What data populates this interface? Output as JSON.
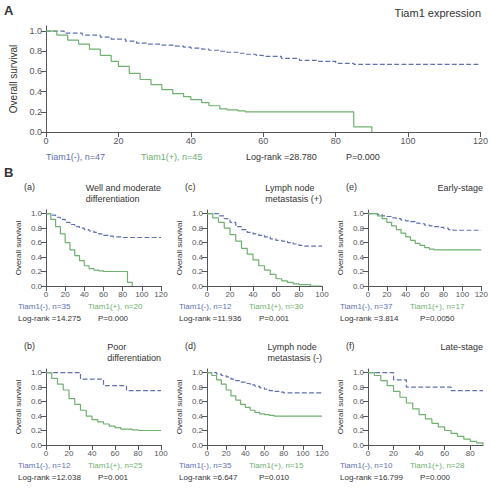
{
  "chart_data": [
    {
      "type": "step",
      "panel_label": "A",
      "title": "Tiam1 expression",
      "ylabel": "Overall survival",
      "xlim": [
        0,
        120
      ],
      "ylim": [
        0,
        1.05
      ],
      "xticks": [
        0,
        20,
        40,
        60,
        80,
        100,
        120
      ],
      "yticks": [
        {
          "value": 0.0,
          "label": "0.0"
        },
        0.2,
        0.4,
        0.6,
        0.8,
        {
          "value": 1.0,
          "label": "1.0"
        }
      ],
      "grid": false,
      "series": [
        {
          "name": "Tiam1(-), n=47",
          "color": "#6070b0",
          "line_style": "dashed",
          "x": [
            0,
            5,
            10,
            15,
            18,
            22,
            25,
            28,
            32,
            35,
            38,
            40,
            43,
            45,
            48,
            50,
            53,
            55,
            58,
            60,
            65,
            70,
            75,
            80,
            85,
            90,
            95,
            100,
            105,
            110,
            115,
            120
          ],
          "values": [
            1.0,
            0.98,
            0.96,
            0.94,
            0.92,
            0.9,
            0.88,
            0.87,
            0.86,
            0.85,
            0.84,
            0.83,
            0.82,
            0.81,
            0.8,
            0.79,
            0.78,
            0.77,
            0.76,
            0.75,
            0.73,
            0.71,
            0.7,
            0.68,
            0.67,
            0.67,
            0.67,
            0.67,
            0.67,
            0.67,
            0.67,
            0.67
          ]
        },
        {
          "name": "Tiam1(+), n=45",
          "color": "#70b070",
          "line_style": "solid",
          "x": [
            0,
            3,
            6,
            9,
            12,
            15,
            18,
            20,
            23,
            26,
            29,
            32,
            35,
            38,
            40,
            43,
            45,
            48,
            50,
            53,
            55,
            58,
            60,
            63,
            65,
            68,
            70,
            75,
            80,
            85,
            90
          ],
          "values": [
            1.0,
            0.96,
            0.91,
            0.87,
            0.82,
            0.76,
            0.7,
            0.65,
            0.58,
            0.52,
            0.47,
            0.42,
            0.38,
            0.35,
            0.32,
            0.29,
            0.26,
            0.23,
            0.22,
            0.21,
            0.2,
            0.2,
            0.2,
            0.2,
            0.2,
            0.2,
            0.2,
            0.2,
            0.2,
            0.05,
            0.0
          ]
        }
      ],
      "annotations": [
        "Log-rank =28.780",
        "P=0.000"
      ]
    },
    {
      "type": "step",
      "group_label": "B",
      "panel_label": "(a)",
      "title": "Well and moderate\ndifferentiation",
      "ylabel": "Overall survival",
      "xlim": [
        0,
        120
      ],
      "ylim": [
        0,
        1.05
      ],
      "xticks": [
        0,
        20,
        40,
        60,
        80,
        100,
        120
      ],
      "yticks": [
        {
          "value": 0.0,
          "label": "0.0"
        },
        0.2,
        0.4,
        0.6,
        0.8,
        {
          "value": 1.0,
          "label": "1.0"
        }
      ],
      "grid": false,
      "series": [
        {
          "name": "Tiam1(-), n=35",
          "color": "#6070b0",
          "line_style": "dashed",
          "x": [
            0,
            5,
            10,
            15,
            20,
            25,
            30,
            35,
            40,
            45,
            50,
            55,
            60,
            65,
            70,
            80,
            90,
            100,
            110,
            120
          ],
          "values": [
            1.0,
            0.98,
            0.95,
            0.92,
            0.88,
            0.85,
            0.82,
            0.8,
            0.78,
            0.76,
            0.74,
            0.72,
            0.7,
            0.69,
            0.68,
            0.67,
            0.67,
            0.67,
            0.67,
            0.67
          ]
        },
        {
          "name": "Tiam1(+), n=20",
          "color": "#70b070",
          "line_style": "solid",
          "x": [
            0,
            5,
            10,
            15,
            20,
            25,
            30,
            35,
            40,
            45,
            50,
            55,
            60,
            65,
            70,
            75,
            80,
            85,
            90
          ],
          "values": [
            1.0,
            0.92,
            0.82,
            0.72,
            0.6,
            0.5,
            0.42,
            0.35,
            0.28,
            0.24,
            0.22,
            0.21,
            0.2,
            0.2,
            0.2,
            0.2,
            0.2,
            0.05,
            0.0
          ]
        }
      ],
      "annotations": [
        "Log-rank =14.275",
        "P=0.000"
      ]
    },
    {
      "type": "step",
      "panel_label": "(b)",
      "title": "Poor\ndifferentiation",
      "ylabel": "Overall survival",
      "xlim": [
        0,
        100
      ],
      "ylim": [
        0,
        1.05
      ],
      "xticks": [
        0,
        20,
        40,
        60,
        80,
        100
      ],
      "yticks": [
        {
          "value": 0.0,
          "label": "0.0"
        },
        0.2,
        0.4,
        0.6,
        0.8,
        {
          "value": 1.0,
          "label": "1.0"
        }
      ],
      "grid": false,
      "series": [
        {
          "name": "Tiam1(-), n=12",
          "color": "#6070b0",
          "line_style": "dashed",
          "x": [
            0,
            10,
            20,
            30,
            40,
            50,
            60,
            70,
            80,
            90,
            100
          ],
          "values": [
            1.0,
            1.0,
            1.0,
            0.91,
            0.91,
            0.82,
            0.82,
            0.75,
            0.75,
            0.75,
            0.75
          ]
        },
        {
          "name": "Tiam1(+), n=25",
          "color": "#70b070",
          "line_style": "solid",
          "x": [
            0,
            5,
            10,
            15,
            20,
            25,
            30,
            35,
            40,
            45,
            50,
            55,
            60,
            65,
            70,
            75,
            80,
            85,
            90,
            95,
            100
          ],
          "values": [
            1.0,
            0.92,
            0.84,
            0.76,
            0.64,
            0.56,
            0.48,
            0.4,
            0.35,
            0.32,
            0.29,
            0.26,
            0.24,
            0.22,
            0.22,
            0.21,
            0.2,
            0.2,
            0.2,
            0.2,
            0.2
          ]
        }
      ],
      "annotations": [
        "Log-rank =12.038",
        "P=0.001"
      ]
    },
    {
      "type": "step",
      "panel_label": "(c)",
      "title": "Lymph node\nmetastasis (+)",
      "ylabel": "Overall survival",
      "xlim": [
        0,
        100
      ],
      "ylim": [
        0,
        1.05
      ],
      "xticks": [
        0,
        20,
        40,
        60,
        80,
        100
      ],
      "yticks": [
        {
          "value": 0.0,
          "label": "0.0"
        },
        0.2,
        0.4,
        0.6,
        0.8,
        {
          "value": 1.0,
          "label": "1.0"
        }
      ],
      "grid": false,
      "series": [
        {
          "name": "Tiam1(-), n=12",
          "color": "#6070b0",
          "line_style": "dashed",
          "x": [
            0,
            5,
            10,
            15,
            20,
            25,
            30,
            35,
            40,
            45,
            50,
            55,
            60,
            65,
            70,
            75,
            80,
            85,
            90,
            95,
            100
          ],
          "values": [
            1.0,
            1.0,
            0.97,
            0.93,
            0.88,
            0.82,
            0.78,
            0.74,
            0.72,
            0.7,
            0.68,
            0.65,
            0.63,
            0.62,
            0.6,
            0.58,
            0.56,
            0.55,
            0.55,
            0.55,
            0.55
          ]
        },
        {
          "name": "Tiam1(+), n=30",
          "color": "#70b070",
          "line_style": "solid",
          "x": [
            0,
            5,
            10,
            15,
            20,
            25,
            30,
            35,
            40,
            45,
            50,
            55,
            60,
            65,
            70,
            75,
            80,
            85,
            90,
            95,
            100
          ],
          "values": [
            1.0,
            0.94,
            0.88,
            0.8,
            0.71,
            0.62,
            0.52,
            0.44,
            0.36,
            0.28,
            0.22,
            0.16,
            0.1,
            0.07,
            0.05,
            0.03,
            0.02,
            0.02,
            0.0,
            0.0,
            0.0
          ]
        }
      ],
      "annotations": [
        "Log-rank =11.936",
        "P=0.001"
      ]
    },
    {
      "type": "step",
      "panel_label": "(d)",
      "title": "Lymph node\nmetastasis (-)",
      "ylabel": "Overall survival",
      "xlim": [
        0,
        120
      ],
      "ylim": [
        0,
        1.05
      ],
      "xticks": [
        0,
        20,
        40,
        60,
        80,
        100,
        120
      ],
      "yticks": [
        {
          "value": 0.0,
          "label": "0.0"
        },
        0.2,
        0.4,
        0.6,
        0.8,
        {
          "value": 1.0,
          "label": "1.0"
        }
      ],
      "grid": false,
      "series": [
        {
          "name": "Tiam1(-), n=35",
          "color": "#6070b0",
          "line_style": "dashed",
          "x": [
            0,
            5,
            10,
            15,
            20,
            25,
            30,
            35,
            40,
            45,
            50,
            55,
            60,
            65,
            70,
            75,
            80,
            85,
            90,
            95,
            100,
            105,
            110,
            115,
            120
          ],
          "values": [
            1.0,
            1.0,
            0.98,
            0.96,
            0.94,
            0.91,
            0.89,
            0.87,
            0.85,
            0.83,
            0.81,
            0.79,
            0.77,
            0.75,
            0.74,
            0.73,
            0.72,
            0.72,
            0.72,
            0.72,
            0.72,
            0.72,
            0.72,
            0.72,
            0.72
          ]
        },
        {
          "name": "Tiam1(+), n=15",
          "color": "#70b070",
          "line_style": "solid",
          "x": [
            0,
            5,
            10,
            15,
            20,
            25,
            30,
            35,
            40,
            45,
            50,
            55,
            60,
            65,
            70,
            75,
            80,
            85,
            90,
            95,
            100,
            105,
            110,
            115,
            120
          ],
          "values": [
            1.0,
            0.96,
            0.9,
            0.84,
            0.76,
            0.68,
            0.62,
            0.56,
            0.52,
            0.48,
            0.45,
            0.43,
            0.42,
            0.41,
            0.4,
            0.4,
            0.4,
            0.4,
            0.4,
            0.4,
            0.4,
            0.4,
            0.4,
            0.4,
            0.4
          ]
        }
      ],
      "annotations": [
        "Log-rank =6.647",
        "P=0.010"
      ]
    },
    {
      "type": "step",
      "panel_label": "(e)",
      "title": "Early-stage",
      "ylabel": "Overall survival",
      "xlim": [
        0,
        120
      ],
      "ylim": [
        0,
        1.05
      ],
      "xticks": [
        0,
        20,
        40,
        60,
        80,
        100,
        120
      ],
      "yticks": [
        {
          "value": 0.0,
          "label": "0.0"
        },
        0.2,
        0.4,
        0.6,
        0.8,
        {
          "value": 1.0,
          "label": "1.0"
        }
      ],
      "grid": false,
      "series": [
        {
          "name": "Tiam1(-), n=37",
          "color": "#6070b0",
          "line_style": "dashed",
          "x": [
            0,
            5,
            10,
            15,
            20,
            25,
            30,
            35,
            40,
            45,
            50,
            55,
            60,
            65,
            70,
            75,
            80,
            85,
            90,
            95,
            100,
            105,
            110,
            115,
            120
          ],
          "values": [
            1.0,
            1.0,
            0.99,
            0.97,
            0.96,
            0.94,
            0.93,
            0.91,
            0.9,
            0.89,
            0.87,
            0.86,
            0.84,
            0.83,
            0.82,
            0.81,
            0.8,
            0.78,
            0.77,
            0.77,
            0.77,
            0.77,
            0.77,
            0.77,
            0.77
          ]
        },
        {
          "name": "Tiam1(+), n=17",
          "color": "#70b070",
          "line_style": "solid",
          "x": [
            0,
            5,
            10,
            15,
            20,
            25,
            30,
            35,
            40,
            45,
            50,
            55,
            60,
            65,
            70,
            75,
            80,
            85,
            90,
            95,
            100,
            105,
            110,
            115,
            120
          ],
          "values": [
            1.0,
            1.0,
            0.97,
            0.93,
            0.88,
            0.83,
            0.78,
            0.73,
            0.68,
            0.63,
            0.59,
            0.56,
            0.53,
            0.51,
            0.5,
            0.5,
            0.5,
            0.5,
            0.5,
            0.5,
            0.5,
            0.5,
            0.5,
            0.5,
            0.5
          ]
        }
      ],
      "annotations": [
        "Log-rank =3.814",
        "P=0.0050"
      ]
    },
    {
      "type": "step",
      "panel_label": "(f)",
      "title": "Late-stage",
      "ylabel": "Overall survival",
      "xlim": [
        0,
        90
      ],
      "ylim": [
        0,
        1.05
      ],
      "xticks": [
        0,
        20,
        40,
        60,
        80
      ],
      "yticks": [
        {
          "value": 0.0,
          "label": "0.0"
        },
        0.2,
        0.4,
        0.6,
        0.8,
        {
          "value": 1.0,
          "label": "1.0"
        }
      ],
      "grid": false,
      "series": [
        {
          "name": "Tiam1(-), n=10",
          "color": "#6070b0",
          "line_style": "dashed",
          "x": [
            0,
            5,
            10,
            15,
            20,
            25,
            30,
            35,
            40,
            45,
            50,
            55,
            60,
            65,
            70,
            75,
            80,
            85,
            90
          ],
          "values": [
            1.0,
            1.0,
            1.0,
            1.0,
            0.9,
            0.9,
            0.8,
            0.8,
            0.8,
            0.8,
            0.8,
            0.8,
            0.8,
            0.75,
            0.75,
            0.75,
            0.75,
            0.75,
            0.75
          ]
        },
        {
          "name": "Tiam1(+), n=28",
          "color": "#70b070",
          "line_style": "solid",
          "x": [
            0,
            5,
            10,
            15,
            20,
            25,
            30,
            35,
            40,
            45,
            50,
            55,
            60,
            65,
            70,
            75,
            80,
            85,
            90
          ],
          "values": [
            1.0,
            0.96,
            0.89,
            0.82,
            0.74,
            0.66,
            0.58,
            0.5,
            0.42,
            0.36,
            0.3,
            0.25,
            0.2,
            0.16,
            0.12,
            0.08,
            0.05,
            0.03,
            0.0
          ]
        }
      ],
      "annotations": [
        "Log-rank =16.799",
        "P=0.000"
      ]
    }
  ]
}
